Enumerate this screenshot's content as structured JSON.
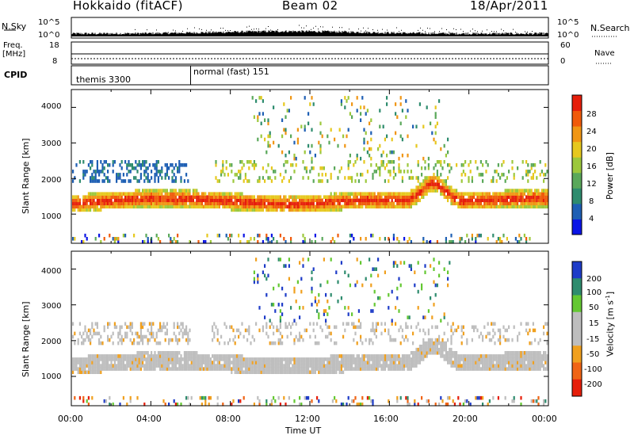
{
  "header": {
    "station": "Hokkaido (fitACF)",
    "beam": "Beam 02",
    "date": "18/Apr/2011"
  },
  "noise_panel": {
    "left_label": "N.Sky",
    "right_label": "N.Search",
    "left_ticks": [
      "10^5",
      "10^0"
    ],
    "right_ticks": [
      "10^5",
      "10^0"
    ]
  },
  "freq_panel": {
    "left_label_1": "Freq.",
    "left_label_2": "[MHz]",
    "right_label": "Nave",
    "left_ticks": [
      "18",
      "8"
    ],
    "right_ticks": [
      "60",
      "0"
    ]
  },
  "cpid_panel": {
    "label": "CPID",
    "modes": [
      {
        "name": "themis 3300",
        "start_hour": 0
      },
      {
        "name": "normal (fast) 151",
        "start_hour": 6
      }
    ]
  },
  "chart_data": [
    {
      "type": "heatmap",
      "title": "Power",
      "xlabel": "",
      "ylabel": "Slant Range [km]",
      "x_range_hours": [
        0,
        24
      ],
      "y_range_km": [
        180,
        4500
      ],
      "yticks": [
        "1000",
        "2000",
        "3000",
        "4000"
      ],
      "colorbar_label": "Power [dB]",
      "colorbar_ticks": [
        "4",
        "8",
        "12",
        "16",
        "20",
        "24",
        "28"
      ],
      "colorbar_range": [
        0,
        30
      ],
      "colors": [
        "#0a14e6",
        "#1e5fb4",
        "#2e8c6e",
        "#5aa85a",
        "#9cc83c",
        "#e6c81e",
        "#f09614",
        "#f05a0a",
        "#e61e0a"
      ]
    },
    {
      "type": "heatmap",
      "title": "Velocity",
      "xlabel": "Time UT",
      "ylabel": "Slant Range [km]",
      "x_range_hours": [
        0,
        24
      ],
      "y_range_km": [
        180,
        4500
      ],
      "xticks": [
        "00:00",
        "04:00",
        "08:00",
        "12:00",
        "16:00",
        "20:00",
        "00:00"
      ],
      "yticks": [
        "1000",
        "2000",
        "3000",
        "4000"
      ],
      "colorbar_label": "Velocity [m s",
      "colorbar_label_sup": "-1",
      "colorbar_label_end": "]",
      "colorbar_ticks": [
        "200",
        "100",
        "50",
        "15",
        "-15",
        "-50",
        "-100",
        "-200"
      ],
      "colors": [
        "#1e3cc8",
        "#2e8c6e",
        "#64c832",
        "#bebebe",
        "#bebebe",
        "#f0a01e",
        "#f06414",
        "#e61e0a"
      ]
    }
  ]
}
